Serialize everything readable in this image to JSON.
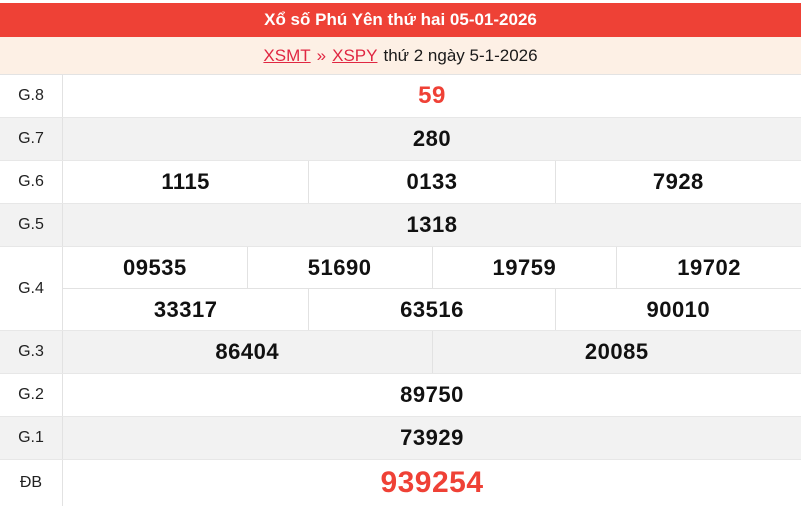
{
  "header": {
    "title": "Xổ số Phú Yên thứ hai 05-01-2026"
  },
  "breadcrumb": {
    "region_link": "XSMT",
    "separator": "»",
    "province_link": "XSPY",
    "date_text": "thứ 2 ngày 5-1-2026"
  },
  "colors": {
    "header_bg": "#ee4136",
    "breadcrumb_bg": "#fdf0e5",
    "link_red": "#e02742",
    "highlight_number": "#ef4136",
    "row_alt_bg": "#f2f2f2",
    "border": "#e2e2e2"
  },
  "results": {
    "rows": [
      {
        "label": "G.8",
        "cells": [
          "59"
        ]
      },
      {
        "label": "G.7",
        "cells": [
          "280"
        ]
      },
      {
        "label": "G.6",
        "cells": [
          "1115",
          "0133",
          "7928"
        ]
      },
      {
        "label": "G.5",
        "cells": [
          "1318"
        ]
      },
      {
        "label": "G.4",
        "subrows": [
          [
            "09535",
            "51690",
            "19759",
            "19702"
          ],
          [
            "33317",
            "63516",
            "90010"
          ]
        ]
      },
      {
        "label": "G.3",
        "cells": [
          "86404",
          "20085"
        ]
      },
      {
        "label": "G.2",
        "cells": [
          "89750"
        ]
      },
      {
        "label": "G.1",
        "cells": [
          "73929"
        ]
      },
      {
        "label": "ĐB",
        "cells": [
          "939254"
        ]
      }
    ]
  }
}
